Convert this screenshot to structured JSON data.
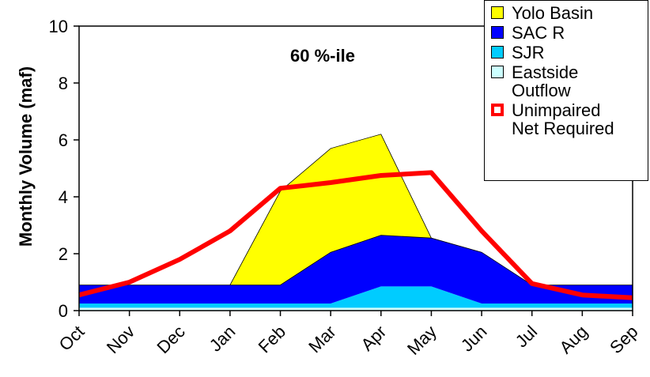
{
  "chart_data": {
    "type": "area",
    "annotation": "60 %-ile",
    "y_label": "Monthly Volume (maf)",
    "categories": [
      "Oct",
      "Nov",
      "Dec",
      "Jan",
      "Feb",
      "Mar",
      "Apr",
      "May",
      "Jun",
      "Jul",
      "Aug",
      "Sep"
    ],
    "ylim": [
      0,
      10
    ],
    "yticks": [
      0,
      2,
      4,
      6,
      8,
      10
    ],
    "legend": "upper right",
    "series": [
      {
        "name": "Eastside Outflow",
        "type": "area",
        "color": "#ccffff",
        "values": [
          0.1,
          0.1,
          0.1,
          0.1,
          0.1,
          0.1,
          0.1,
          0.1,
          0.1,
          0.1,
          0.1,
          0.1
        ]
      },
      {
        "name": "SJR",
        "type": "area",
        "color": "#00ccff",
        "values": [
          0.15,
          0.15,
          0.15,
          0.15,
          0.15,
          0.15,
          0.75,
          0.75,
          0.15,
          0.15,
          0.15,
          0.15
        ]
      },
      {
        "name": "SAC R",
        "type": "area",
        "color": "#0000ff",
        "values": [
          0.65,
          0.65,
          0.65,
          0.65,
          0.65,
          1.8,
          1.8,
          1.7,
          1.8,
          0.65,
          0.65,
          0.65
        ]
      },
      {
        "name": "Yolo Basin",
        "type": "area",
        "color": "#ffff00",
        "values": [
          0,
          0,
          0,
          0,
          3.3,
          3.65,
          3.55,
          0,
          0,
          0,
          0,
          0
        ]
      },
      {
        "name": "Unimpaired Net Required",
        "type": "line",
        "color": "#ff0000",
        "values": [
          0.55,
          1.0,
          1.8,
          2.8,
          4.3,
          4.5,
          4.75,
          4.85,
          2.8,
          0.95,
          0.55,
          0.45
        ]
      }
    ]
  }
}
